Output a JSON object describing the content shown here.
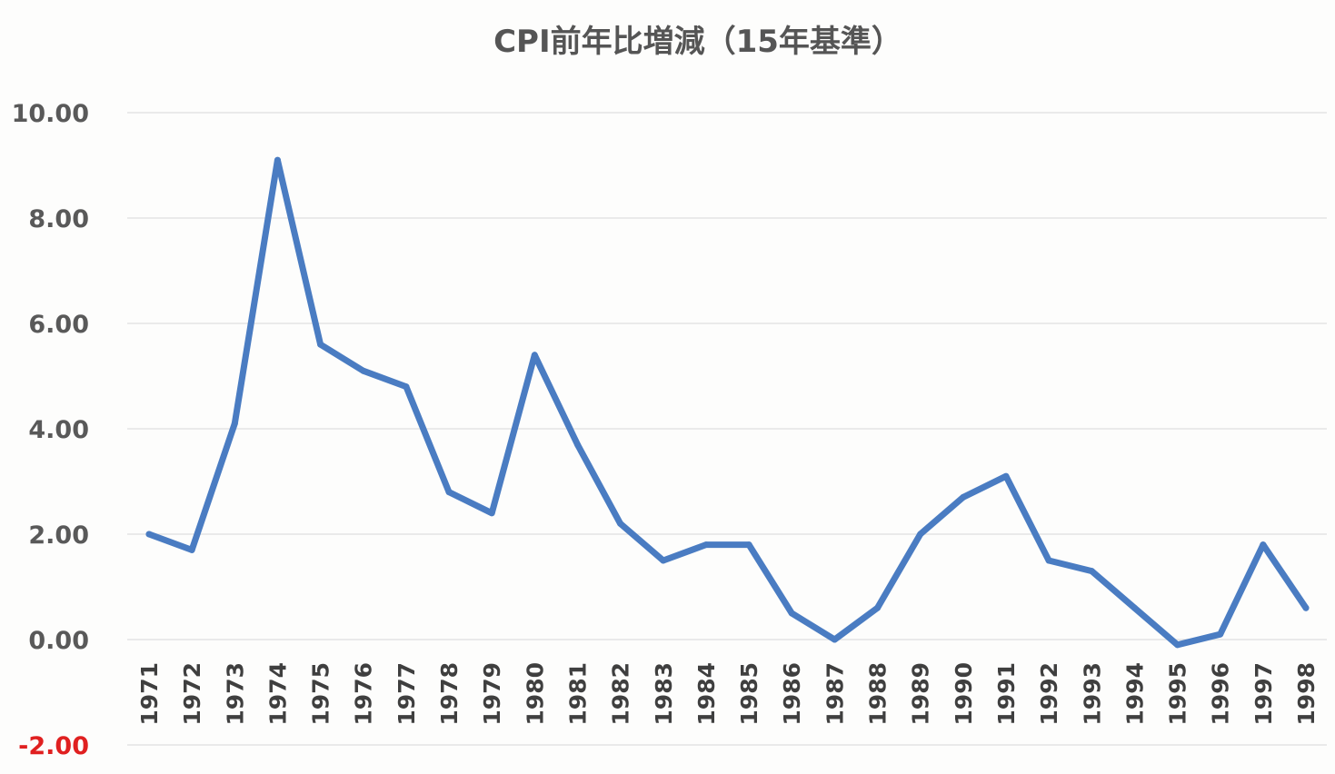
{
  "chart_data": {
    "type": "line",
    "title": "CPI前年比増減（15年基準）",
    "xlabel": "",
    "ylabel": "",
    "ylim": [
      -2,
      10
    ],
    "yticks": [
      "10.00",
      "8.00",
      "6.00",
      "4.00",
      "2.00",
      "0.00",
      "-2.00"
    ],
    "ytick_values": [
      10,
      8,
      6,
      4,
      2,
      0,
      -2
    ],
    "categories": [
      "1971",
      "1972",
      "1973",
      "1974",
      "1975",
      "1976",
      "1977",
      "1978",
      "1979",
      "1980",
      "1981",
      "1982",
      "1983",
      "1984",
      "1985",
      "1986",
      "1987",
      "1988",
      "1989",
      "1990",
      "1991",
      "1992",
      "1993",
      "1994",
      "1995",
      "1996",
      "1997",
      "1998"
    ],
    "series": [
      {
        "values": [
          2.0,
          1.7,
          4.1,
          9.1,
          5.6,
          5.1,
          4.8,
          2.8,
          2.4,
          5.4,
          3.7,
          2.2,
          1.5,
          1.8,
          1.8,
          0.5,
          0.0,
          0.6,
          2.0,
          2.7,
          3.1,
          1.5,
          1.3,
          0.6,
          -0.1,
          0.1,
          1.8,
          0.6
        ],
        "color": "#4a7cc2"
      }
    ],
    "negative_tick_color": "#e02020",
    "grid": true,
    "legend": "none"
  }
}
